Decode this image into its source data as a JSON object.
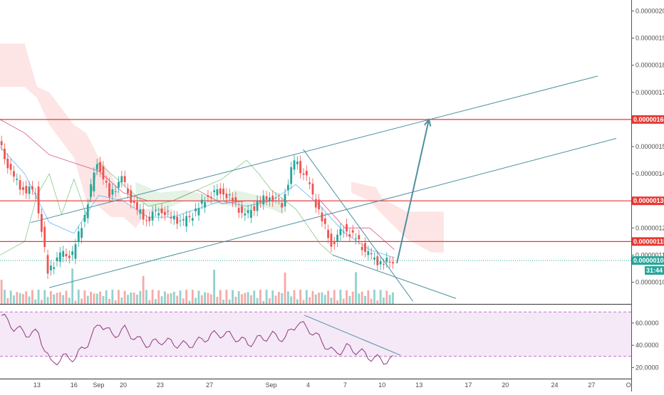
{
  "chart_data": [
    {
      "type": "candlestick",
      "panel": "price",
      "y_axis": {
        "range": [
          9.2e-07,
          2.03e-06
        ],
        "ticks": [
          "0.00000100",
          "0.00000110",
          "0.00000120",
          "0.00000130",
          "0.00000140",
          "0.00000150",
          "0.00000160",
          "0.00000170",
          "0.00000180",
          "0.00000190",
          "0.00000200"
        ],
        "tick_values": [
          1e-06,
          1.1e-06,
          1.2e-06,
          1.3e-06,
          1.4e-06,
          1.5e-06,
          1.6e-06,
          1.7e-06,
          1.8e-06,
          1.9e-06,
          2e-06
        ]
      },
      "x_axis": {
        "ticks": [
          "13",
          "16",
          "Sep",
          "20",
          "23",
          "27",
          "Sep",
          "4",
          "7",
          "10",
          "13",
          "17",
          "20",
          "24",
          "27",
          "O"
        ],
        "tick_index": [
          3,
          6,
          8,
          10,
          13,
          17,
          22,
          25,
          28,
          31,
          34,
          38,
          41,
          45,
          48,
          51
        ]
      },
      "levels": [
        {
          "label": "0.00000160",
          "value": 1.6e-06,
          "color": "#e53935"
        },
        {
          "label": "0.00000130",
          "value": 1.3e-06,
          "color": "#e53935"
        },
        {
          "label": "0.00000115",
          "value": 1.15e-06,
          "color": "#e53935"
        }
      ],
      "last_price": {
        "label": "0.00000108",
        "value": 1.08e-06,
        "color": "#26a69a",
        "countdown": "31:44"
      },
      "candle_series": [
        {
          "day": 0,
          "close": 1.52e-06
        },
        {
          "day": 1,
          "close": 1.4e-06
        },
        {
          "day": 2,
          "close": 1.34e-06
        },
        {
          "day": 3,
          "close": 1.34e-06
        },
        {
          "day": 4,
          "close": 1.04e-06
        },
        {
          "day": 5,
          "close": 1.1e-06
        },
        {
          "day": 6,
          "close": 1.1e-06
        },
        {
          "day": 7,
          "close": 1.25e-06
        },
        {
          "day": 8,
          "close": 1.45e-06
        },
        {
          "day": 9,
          "close": 1.32e-06
        },
        {
          "day": 10,
          "close": 1.38e-06
        },
        {
          "day": 11,
          "close": 1.28e-06
        },
        {
          "day": 12,
          "close": 1.23e-06
        },
        {
          "day": 13,
          "close": 1.27e-06
        },
        {
          "day": 14,
          "close": 1.24e-06
        },
        {
          "day": 15,
          "close": 1.22e-06
        },
        {
          "day": 16,
          "close": 1.26e-06
        },
        {
          "day": 17,
          "close": 1.32e-06
        },
        {
          "day": 18,
          "close": 1.34e-06
        },
        {
          "day": 19,
          "close": 1.3e-06
        },
        {
          "day": 20,
          "close": 1.24e-06
        },
        {
          "day": 21,
          "close": 1.29e-06
        },
        {
          "day": 22,
          "close": 1.32e-06
        },
        {
          "day": 23,
          "close": 1.29e-06
        },
        {
          "day": 24,
          "close": 1.45e-06
        },
        {
          "day": 25,
          "close": 1.38e-06
        },
        {
          "day": 26,
          "close": 1.26e-06
        },
        {
          "day": 27,
          "close": 1.14e-06
        },
        {
          "day": 28,
          "close": 1.2e-06
        },
        {
          "day": 29,
          "close": 1.16e-06
        },
        {
          "day": 30,
          "close": 1.1e-06
        },
        {
          "day": 31,
          "close": 1.07e-06
        },
        {
          "day": 32,
          "close": 1.08e-06
        }
      ],
      "annotations": {
        "projection_arrow": {
          "from": [
            32.2,
            1.07e-06
          ],
          "to": [
            34.8,
            1.6e-06
          ]
        },
        "channel_top": {
          "from": [
            2.5,
            1.22e-06
          ],
          "to": [
            48.5,
            1.76e-06
          ]
        },
        "channel_bottom": {
          "from": [
            4,
            9.8e-07
          ],
          "to": [
            50,
            1.53e-06
          ]
        },
        "falling_wedge_top": {
          "from": [
            24.6,
            1.49e-06
          ],
          "to": [
            33.5,
            9.3e-07
          ]
        },
        "falling_wedge_bottom": {
          "from": [
            27,
            1.1e-06
          ],
          "to": [
            37,
            9.4e-07
          ]
        }
      }
    },
    {
      "type": "line",
      "panel": "RSI",
      "y_axis": {
        "range": [
          10,
          74
        ],
        "ticks": [
          "20.0000",
          "40.0000",
          "60.0000"
        ],
        "tick_values": [
          20,
          40,
          60
        ]
      },
      "bands": [
        70,
        30
      ],
      "current_value": 40,
      "trendline": {
        "from": [
          24.7,
          67
        ],
        "to": [
          32.5,
          31
        ]
      }
    }
  ],
  "colors": {
    "price_up": "#26a69a",
    "price_down": "#ef5350",
    "channel": "#4f8fa0",
    "resistance": "#e53935",
    "cloud_bear": "rgba(239,83,80,0.15)",
    "cloud_bull": "rgba(76,175,80,0.15)",
    "rsi_line": "#8e3a7c",
    "rsi_band": "rgba(186,104,200,0.15)"
  },
  "icons": {
    "price_scale": "price-scale-icon"
  }
}
